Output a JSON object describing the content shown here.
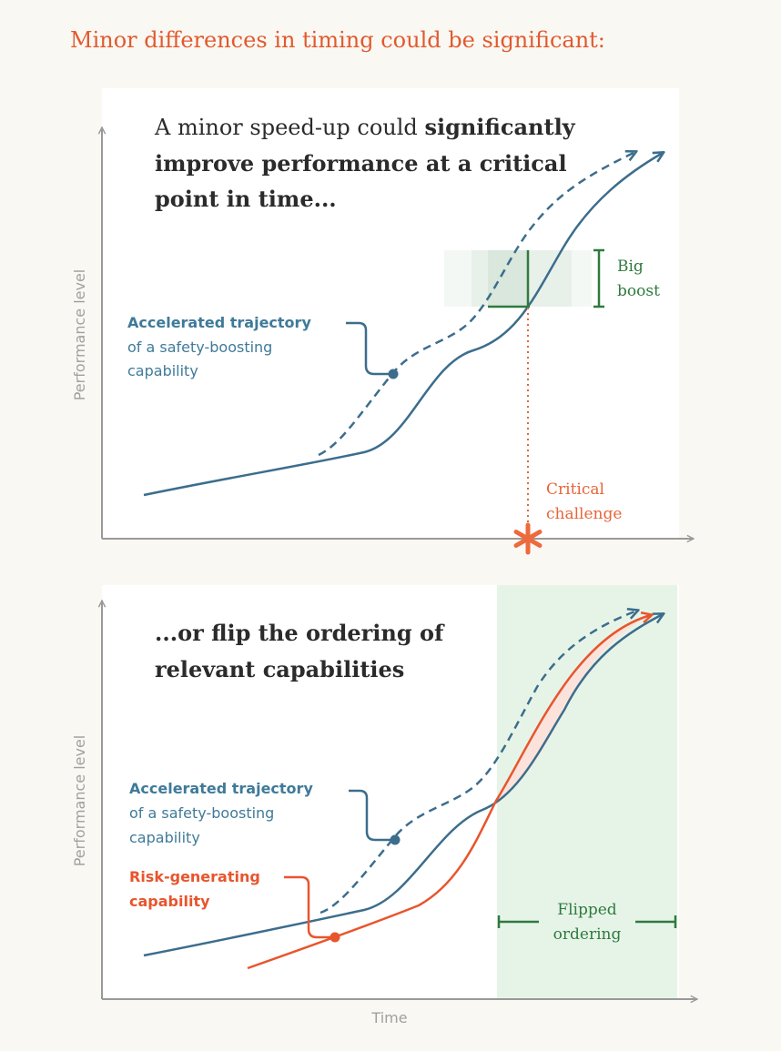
{
  "title": "Minor differences in timing could be significant:",
  "panel1": {
    "heading_line1_regular": "A minor speed-up could ",
    "heading_line1_bold": "significantly",
    "heading_line2": "improve performance at a critical",
    "heading_line3": "point in time...",
    "ylabel": "Performance level",
    "accel_label_bold": "Accelerated trajectory",
    "accel_label_line2": "of a safety-boosting",
    "accel_label_line3": "capability",
    "boost_line1": "Big",
    "boost_line2": "boost",
    "critical_line1": "Critical",
    "critical_line2": "challenge"
  },
  "panel2": {
    "heading_line1": "...or flip the ordering of",
    "heading_line2": "relevant capabilities",
    "ylabel": "Performance level",
    "accel_label_bold": "Accelerated trajectory",
    "accel_label_line2": "of a safety-boosting",
    "accel_label_line3": "capability",
    "risk_line1": "Risk-generating",
    "risk_line2": "capability",
    "flipped_line1": "Flipped",
    "flipped_line2": "ordering",
    "xlabel": "Time"
  },
  "colors": {
    "title": "#e15a2e",
    "safety": "#3c6d8c",
    "safety_label": "#3f7a99",
    "risk": "#e8552d",
    "boost": "#2f7a3e",
    "critical": "#e8653a",
    "flip_region": "#e6f4e8",
    "gap_fill": "#fbe3dc",
    "axis": "#999999"
  }
}
